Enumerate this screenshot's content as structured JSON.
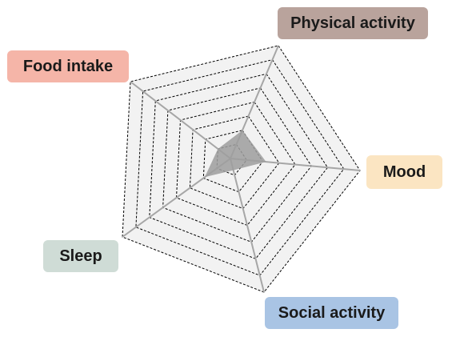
{
  "chart_data": {
    "type": "radar",
    "axes": [
      {
        "key": "physical",
        "label": "Physical activity",
        "color": "#b9a39c"
      },
      {
        "key": "mood",
        "label": "Mood",
        "color": "#fbe5c2"
      },
      {
        "key": "social",
        "label": "Social activity",
        "color": "#a9c4e4"
      },
      {
        "key": "sleep",
        "label": "Sleep",
        "color": "#cfdcd6"
      },
      {
        "key": "food",
        "label": "Food intake",
        "color": "#f5b5a8"
      }
    ],
    "levels": 8,
    "max": 8,
    "series": [
      {
        "values": [
          2.0,
          2.2,
          0.7,
          1.9,
          1.0
        ],
        "fill": "#9e9e9e"
      }
    ],
    "grid_fill": "#f2f2f2",
    "axis_color": "#a6a6a6",
    "grid_line_color": "#000000"
  }
}
